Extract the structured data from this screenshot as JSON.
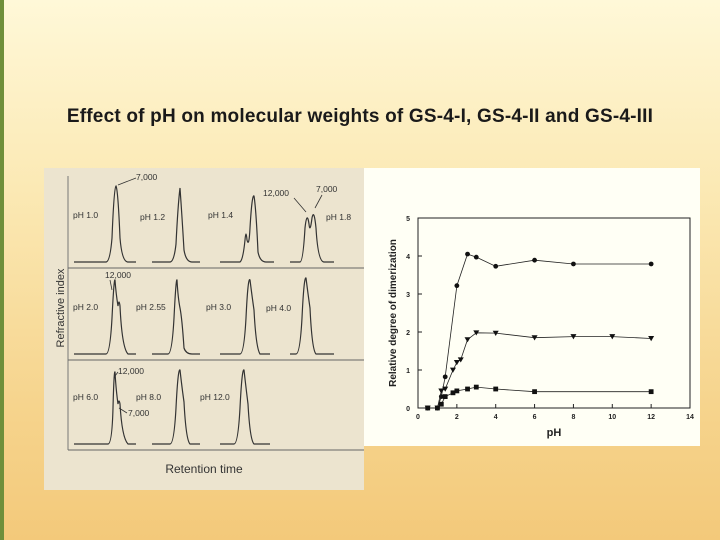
{
  "slide": {
    "title": "Effect of pH on molecular weights of GS-4-I, GS-4-II and GS-4-III"
  },
  "chromatogram": {
    "ylabel": "Refractive index",
    "xlabel": "Retention time",
    "rows": [
      {
        "labels": [
          "pH 1.0",
          "pH 1.2",
          "pH 1.4",
          "pH 1.8"
        ]
      },
      {
        "labels": [
          "pH 2.0",
          "pH 2.55",
          "pH 3.0",
          "pH 4.0"
        ]
      },
      {
        "labels": [
          "pH 6.0",
          "pH 8.0",
          "pH 12.0"
        ]
      }
    ],
    "annotations": {
      "a1": "7,000",
      "a2": "12,000",
      "a3": "7,000",
      "a4": "12,000",
      "a5": "12,000",
      "a6": "7,000"
    }
  },
  "chart_data": {
    "type": "line",
    "title": "",
    "xlabel": "pH",
    "ylabel": "Relative degree of dimerization",
    "xlim": [
      0,
      14
    ],
    "ylim": [
      0,
      5
    ],
    "xticks": [
      0,
      2,
      4,
      6,
      8,
      10,
      12,
      14
    ],
    "yticks": [
      0,
      1,
      2,
      3,
      4,
      5
    ],
    "series": [
      {
        "name": "circles",
        "marker": "circle",
        "points": [
          [
            0.5,
            0.0
          ],
          [
            1.0,
            0.0
          ],
          [
            1.2,
            0.3
          ],
          [
            1.4,
            0.82
          ],
          [
            2.0,
            3.22
          ],
          [
            2.55,
            4.05
          ],
          [
            3.0,
            3.97
          ],
          [
            4.0,
            3.73
          ],
          [
            6.0,
            3.89
          ],
          [
            8.0,
            3.79
          ],
          [
            12.0,
            3.79
          ]
        ]
      },
      {
        "name": "triangles",
        "marker": "triangle-down",
        "points": [
          [
            0.5,
            0.0
          ],
          [
            1.0,
            0.0
          ],
          [
            1.2,
            0.45
          ],
          [
            1.4,
            0.5
          ],
          [
            1.8,
            1.0
          ],
          [
            2.0,
            1.2
          ],
          [
            2.2,
            1.27
          ],
          [
            2.55,
            1.8
          ],
          [
            3.0,
            1.98
          ],
          [
            4.0,
            1.97
          ],
          [
            6.0,
            1.85
          ],
          [
            8.0,
            1.88
          ],
          [
            10.0,
            1.88
          ],
          [
            12.0,
            1.83
          ]
        ]
      },
      {
        "name": "squares",
        "marker": "square",
        "points": [
          [
            0.5,
            0.0
          ],
          [
            1.0,
            0.0
          ],
          [
            1.2,
            0.1
          ],
          [
            1.4,
            0.3
          ],
          [
            1.8,
            0.4
          ],
          [
            2.0,
            0.45
          ],
          [
            2.55,
            0.5
          ],
          [
            3.0,
            0.55
          ],
          [
            4.0,
            0.5
          ],
          [
            6.0,
            0.43
          ],
          [
            12.0,
            0.43
          ]
        ]
      }
    ]
  }
}
